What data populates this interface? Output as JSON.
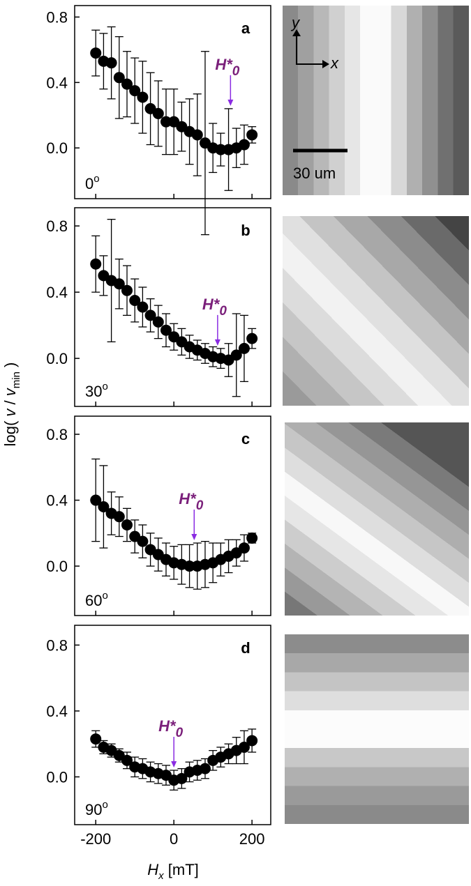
{
  "figure": {
    "ylabel_parts": [
      "log( ",
      "v",
      " / ",
      "v",
      "min",
      " )"
    ]
  },
  "chart_data": [
    {
      "type": "errorbar",
      "panel": "a",
      "angle": "0",
      "degree": "o",
      "annotation": {
        "text": "H*",
        "sub": "0",
        "x": 145
      },
      "x": [
        -200,
        -180,
        -160,
        -140,
        -120,
        -100,
        -80,
        -60,
        -40,
        -20,
        0,
        20,
        40,
        60,
        80,
        100,
        120,
        140,
        160,
        180,
        200
      ],
      "values": [
        0.58,
        0.53,
        0.52,
        0.43,
        0.39,
        0.35,
        0.31,
        0.24,
        0.21,
        0.16,
        0.16,
        0.13,
        0.1,
        0.08,
        0.03,
        0.0,
        -0.01,
        -0.01,
        0.0,
        0.02,
        0.08
      ],
      "errors": [
        0.14,
        0.17,
        0.22,
        0.25,
        0.2,
        0.2,
        0.22,
        0.22,
        0.2,
        0.2,
        0.2,
        0.15,
        0.2,
        0.25,
        0.56,
        0.15,
        0.1,
        0.25,
        0.12,
        0.12,
        0.05
      ],
      "xlim": [
        -254,
        248
      ],
      "ylim": [
        -0.31,
        0.87
      ],
      "xticks": [
        -200,
        0,
        200
      ],
      "yticks": [
        {
          "value": 0,
          "label": "0.0"
        },
        0.4,
        0.8
      ]
    },
    {
      "type": "errorbar",
      "panel": "b",
      "angle": "30",
      "degree": "o",
      "annotation": {
        "text": "H*",
        "sub": "0",
        "x": 112
      },
      "x": [
        -200,
        -180,
        -160,
        -140,
        -120,
        -100,
        -80,
        -60,
        -40,
        -20,
        0,
        20,
        40,
        60,
        80,
        100,
        120,
        140,
        160,
        180,
        200
      ],
      "values": [
        0.57,
        0.5,
        0.47,
        0.45,
        0.41,
        0.35,
        0.31,
        0.26,
        0.22,
        0.17,
        0.13,
        0.1,
        0.07,
        0.05,
        0.03,
        0.01,
        0.0,
        -0.01,
        0.02,
        0.06,
        0.12
      ],
      "errors": [
        0.17,
        0.12,
        0.37,
        0.15,
        0.15,
        0.13,
        0.12,
        0.1,
        0.1,
        0.1,
        0.08,
        0.08,
        0.07,
        0.06,
        0.06,
        0.06,
        0.06,
        0.1,
        0.25,
        0.2,
        0.06
      ],
      "xlim": [
        -254,
        248
      ],
      "ylim": [
        -0.29,
        0.91
      ],
      "xticks": [
        -200,
        0,
        200
      ],
      "yticks": [
        {
          "value": 0,
          "label": "0.0"
        },
        0.4,
        0.8
      ]
    },
    {
      "type": "errorbar",
      "panel": "c",
      "angle": "60",
      "degree": "o",
      "annotation": {
        "text": "H*",
        "sub": "0",
        "x": 52
      },
      "x": [
        -200,
        -180,
        -160,
        -140,
        -120,
        -100,
        -80,
        -60,
        -40,
        -20,
        0,
        20,
        40,
        60,
        80,
        100,
        120,
        140,
        160,
        180,
        200
      ],
      "values": [
        0.4,
        0.36,
        0.32,
        0.3,
        0.25,
        0.18,
        0.15,
        0.1,
        0.07,
        0.04,
        0.02,
        0.01,
        0.0,
        0.0,
        0.01,
        0.02,
        0.04,
        0.06,
        0.08,
        0.11,
        0.17
      ],
      "errors": [
        0.25,
        0.25,
        0.13,
        0.12,
        0.1,
        0.1,
        0.1,
        0.1,
        0.1,
        0.1,
        0.1,
        0.12,
        0.13,
        0.14,
        0.14,
        0.12,
        0.1,
        0.1,
        0.08,
        0.08,
        0.03
      ],
      "xlim": [
        -254,
        248
      ],
      "ylim": [
        -0.3,
        0.91
      ],
      "xticks": [
        -200,
        0,
        200
      ],
      "yticks": [
        {
          "value": 0,
          "label": "0.0"
        },
        0.4,
        0.8
      ]
    },
    {
      "type": "errorbar",
      "panel": "d",
      "angle": "90",
      "degree": "o",
      "annotation": {
        "text": "H*",
        "sub": "0",
        "x": 0
      },
      "x": [
        -200,
        -180,
        -160,
        -140,
        -120,
        -100,
        -80,
        -60,
        -40,
        -20,
        0,
        20,
        40,
        60,
        80,
        100,
        120,
        140,
        160,
        180,
        200
      ],
      "values": [
        0.23,
        0.18,
        0.16,
        0.13,
        0.1,
        0.06,
        0.05,
        0.03,
        0.02,
        0.01,
        -0.02,
        -0.01,
        0.03,
        0.04,
        0.05,
        0.1,
        0.12,
        0.14,
        0.16,
        0.18,
        0.22
      ],
      "errors": [
        0.05,
        0.04,
        0.04,
        0.04,
        0.05,
        0.06,
        0.06,
        0.06,
        0.06,
        0.06,
        0.06,
        0.06,
        0.06,
        0.06,
        0.06,
        0.06,
        0.06,
        0.06,
        0.08,
        0.1,
        0.07
      ],
      "xlim": [
        -254,
        248
      ],
      "ylim": [
        -0.29,
        0.92
      ],
      "xticks": [
        -200,
        0,
        200
      ],
      "yticks": [
        {
          "value": 0,
          "label": "0.0"
        },
        0.4,
        0.8
      ],
      "xlabel_parts": [
        "H",
        "x",
        " [mT]"
      ]
    }
  ],
  "image": {
    "axis_y": "y",
    "axis_x": "x",
    "scale": "30 um"
  }
}
